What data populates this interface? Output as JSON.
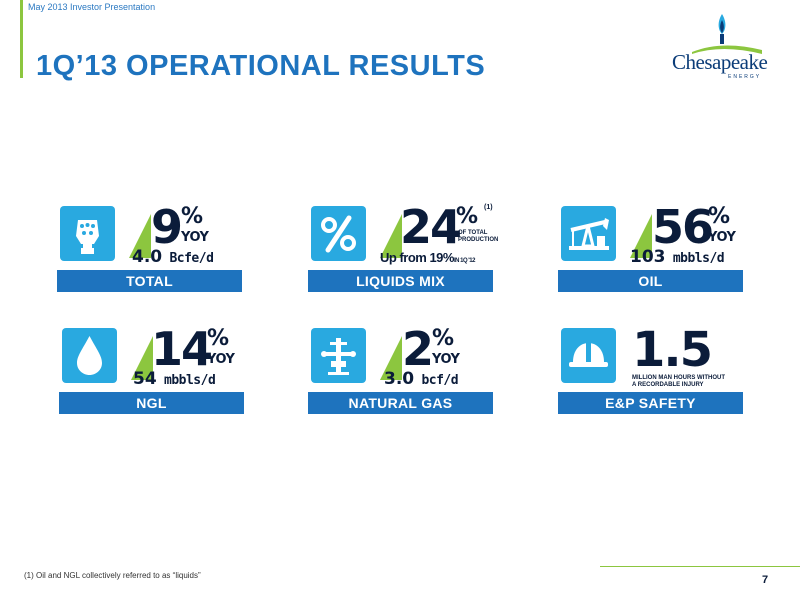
{
  "header": {
    "note": "May 2013 Investor Presentation",
    "title": "1Q’13 OPERATIONAL RESULTS"
  },
  "logo": {
    "name": "Chesapeake",
    "sub": "ENERGY"
  },
  "tiles": [
    {
      "id": "total",
      "icon": "drill-bit-icon",
      "big": "9",
      "pct": "%",
      "yoy": "YOY",
      "sub_value": "4.0",
      "sub_unit": "Bcfe/d",
      "label": "TOTAL"
    },
    {
      "id": "liquids",
      "icon": "percent-icon",
      "big": "24",
      "pct": "%",
      "sup": "(1)",
      "note": "OF TOTAL\nPRODUCTION",
      "sub_text": "Up from 19%",
      "sub_small": "IN 1Q '12",
      "label": "LIQUIDS MIX"
    },
    {
      "id": "oil",
      "icon": "pumpjack-icon",
      "big": "56",
      "pct": "%",
      "yoy": "YOY",
      "sub_value": "103",
      "sub_unit": "mbbls/d",
      "label": "OIL"
    },
    {
      "id": "ngl",
      "icon": "droplet-icon",
      "big": "14",
      "pct": "%",
      "yoy": "YOY",
      "sub_value": "54",
      "sub_unit": "mbbls/d",
      "label": "NGL"
    },
    {
      "id": "gas",
      "icon": "wellhead-icon",
      "big": "2",
      "pct": "%",
      "yoy": "YOY",
      "sub_value": "3.0",
      "sub_unit": "bcf/d",
      "label": "NATURAL GAS"
    },
    {
      "id": "safety",
      "icon": "hard-hat-icon",
      "big": "1.5",
      "note": "MILLION MAN HOURS WITHOUT\nA RECORDABLE INJURY",
      "label": "E&P SAFETY"
    }
  ],
  "footnote": "(1) Oil and NGL collectively referred to as “liquids”",
  "page_number": "7"
}
